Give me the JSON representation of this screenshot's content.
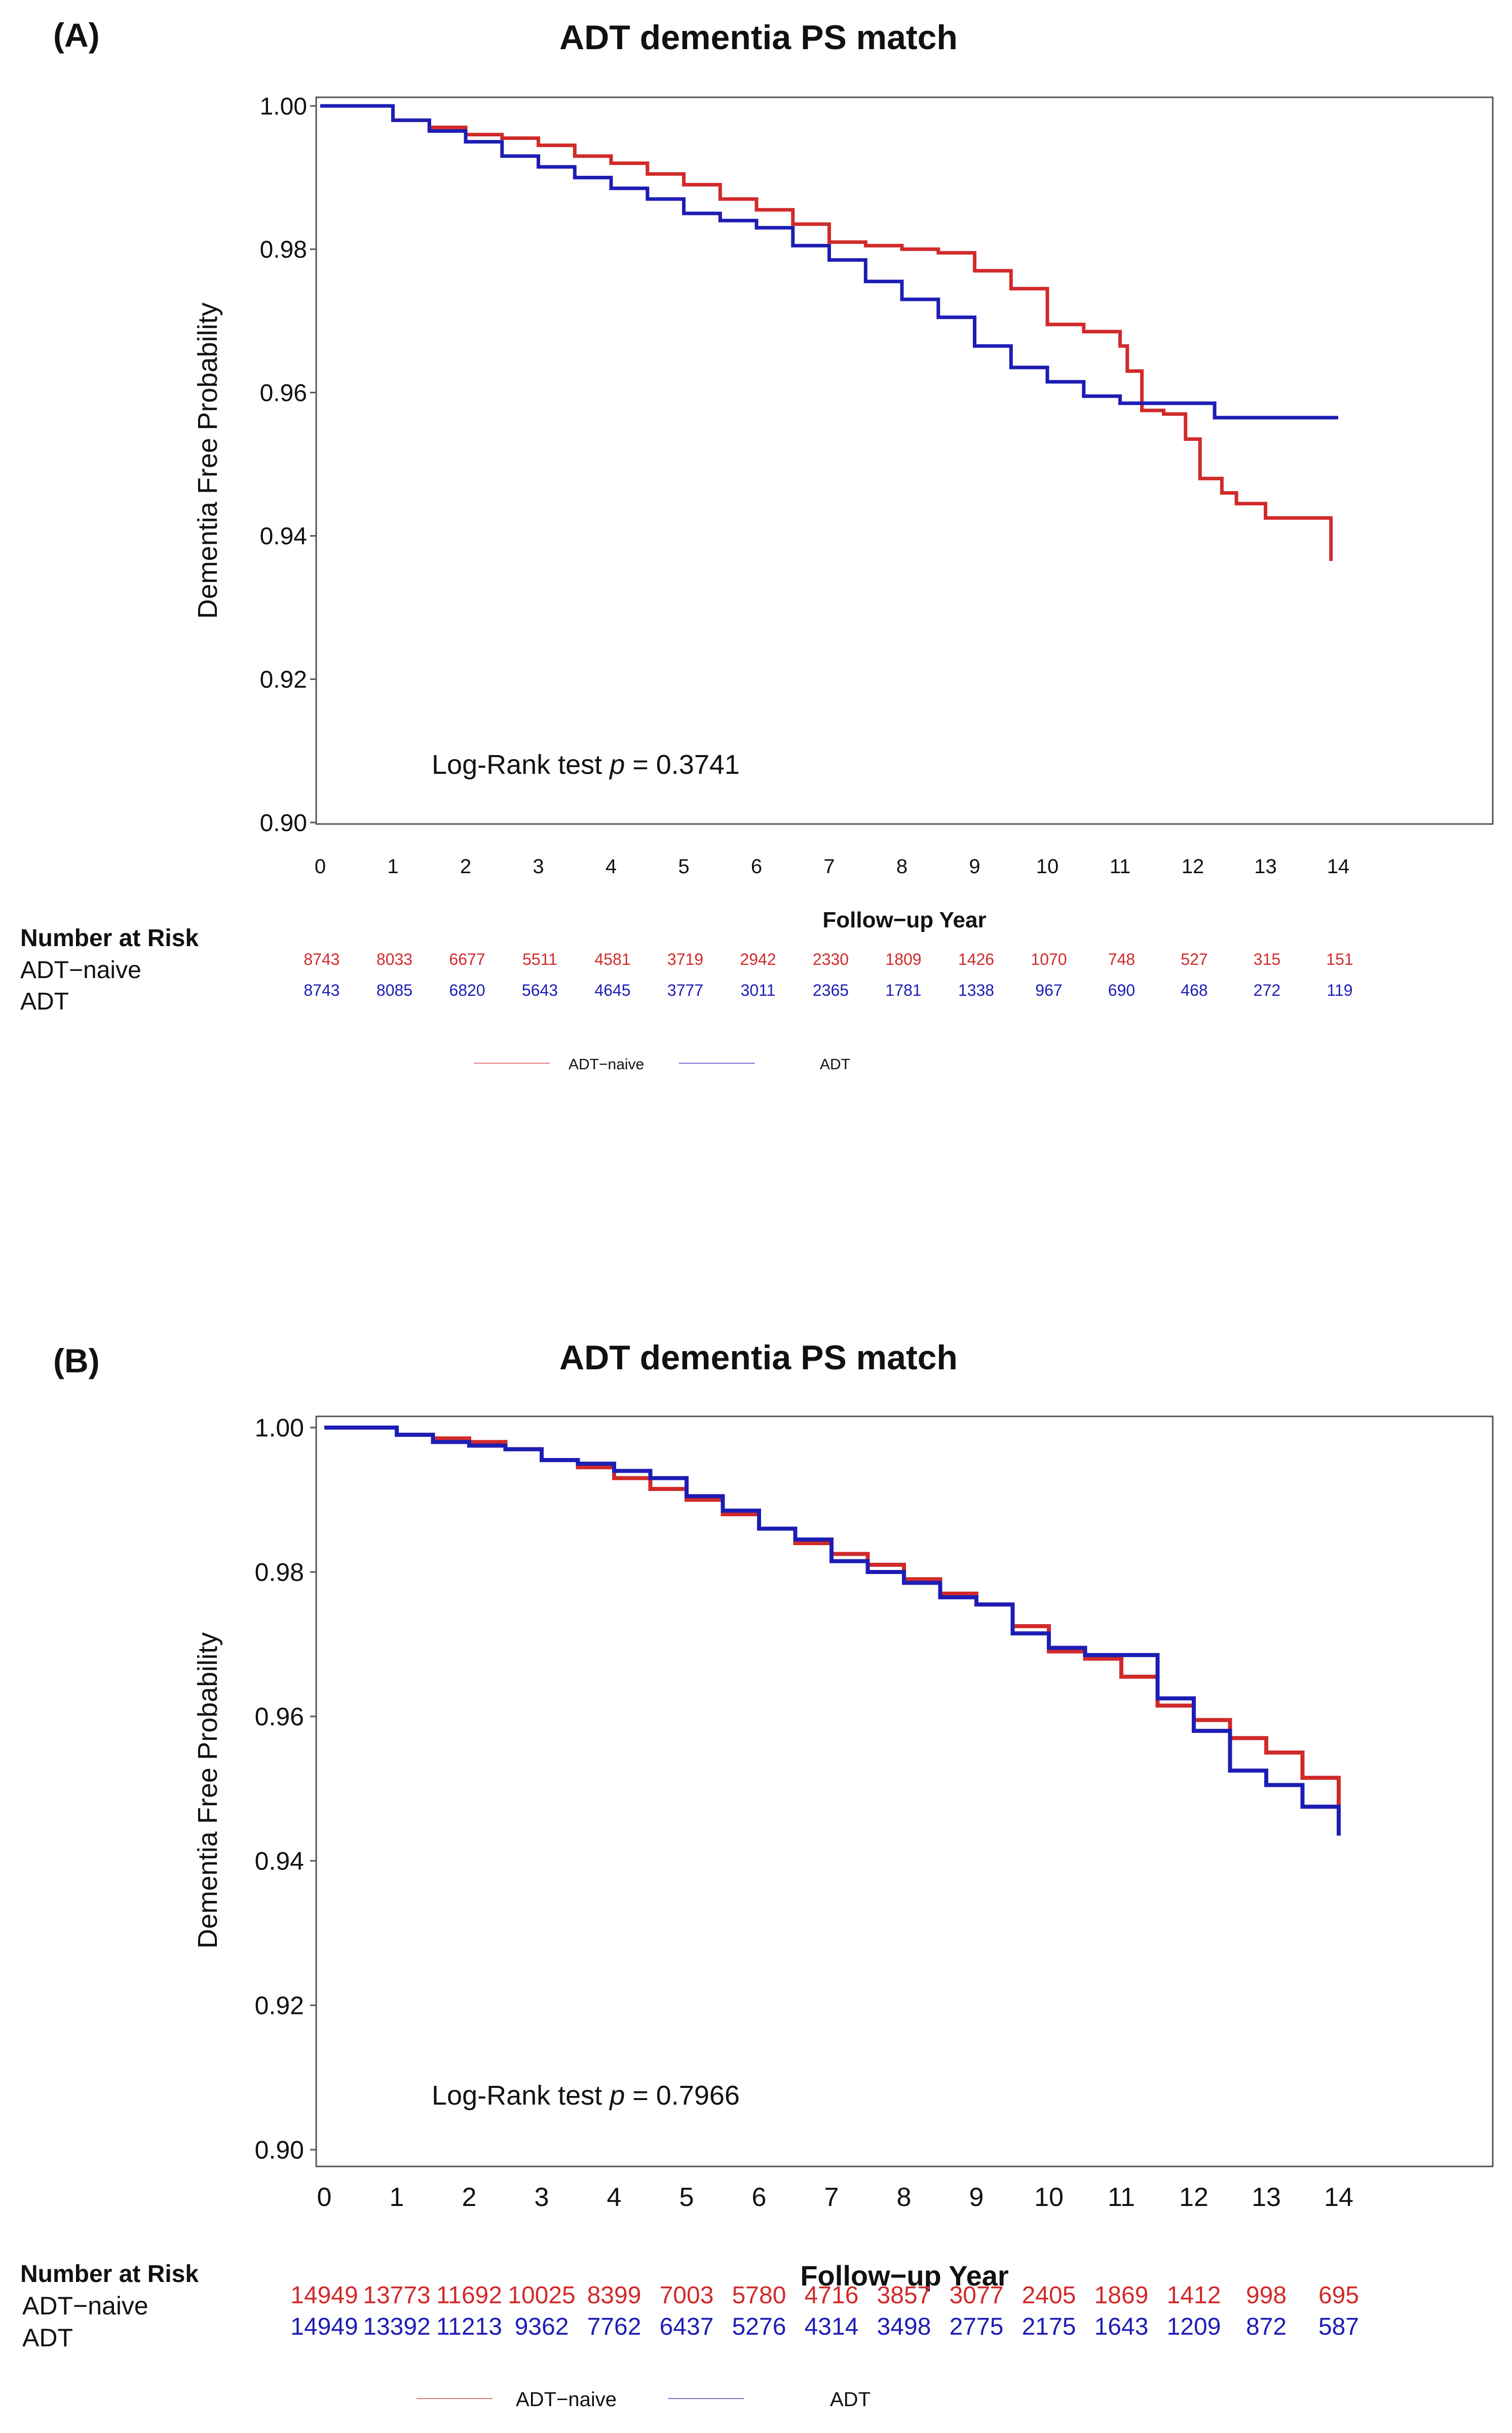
{
  "colors": {
    "naive": "#d12a2a",
    "adt": "#1d1db5",
    "axis": "#333333",
    "text": "#111111"
  },
  "chart_data": [
    {
      "type": "line",
      "panel_label": "(A)",
      "title": "ADT dementia PS match",
      "xlabel": "Follow−up Year",
      "ylabel": "Dementia Free Probability",
      "xlim": [
        0,
        16
      ],
      "ylim": [
        0.9,
        1.0
      ],
      "xticks": [
        0,
        1,
        2,
        3,
        4,
        5,
        6,
        7,
        8,
        9,
        10,
        11,
        12,
        13,
        14
      ],
      "yticks": [
        0.9,
        0.92,
        0.94,
        0.96,
        0.98,
        1.0
      ],
      "ytick_labels": [
        "0.90",
        "0.92",
        "0.94",
        "0.96",
        "0.98",
        "1.00"
      ],
      "grid": false,
      "annotation_prefix": "Log-Rank test ",
      "annotation_italic": "p",
      "annotation_suffix": " = 0.3741",
      "risk_title": "Number at Risk",
      "risk_times": [
        0,
        1,
        2,
        3,
        4,
        5,
        6,
        7,
        8,
        9,
        10,
        11,
        12,
        13,
        14
      ],
      "legend": [
        "ADT−naive",
        "ADT"
      ],
      "legend_position": "bottom-center",
      "series": [
        {
          "name": "ADT−naive",
          "color": "#d12a2a",
          "risk": [
            "8743",
            "8033",
            "6677",
            "5511",
            "4581",
            "3719",
            "2942",
            "2330",
            "1809",
            "1426",
            "1070",
            "748",
            "527",
            "315",
            "151"
          ],
          "x": [
            0,
            0.5,
            1,
            1.5,
            2,
            2.5,
            3,
            3.5,
            4,
            4.5,
            5,
            5.5,
            6,
            6.5,
            7,
            7.5,
            8,
            8.5,
            9,
            9.5,
            10,
            10.5,
            11,
            11.1,
            11.3,
            11.6,
            11.9,
            12.1,
            12.4,
            12.6,
            13,
            13.5,
            13.9,
            13.9
          ],
          "y": [
            1.0,
            1.0,
            0.998,
            0.997,
            0.996,
            0.9955,
            0.9945,
            0.993,
            0.992,
            0.9905,
            0.989,
            0.987,
            0.9855,
            0.9835,
            0.981,
            0.9805,
            0.98,
            0.9795,
            0.977,
            0.9745,
            0.9695,
            0.9685,
            0.9665,
            0.963,
            0.9575,
            0.957,
            0.9535,
            0.948,
            0.946,
            0.9445,
            0.9425,
            0.9425,
            0.9425,
            0.9365
          ]
        },
        {
          "name": "ADT",
          "color": "#1d1db5",
          "risk": [
            "8743",
            "8085",
            "6820",
            "5643",
            "4645",
            "3777",
            "3011",
            "2365",
            "1781",
            "1338",
            "967",
            "690",
            "468",
            "272",
            "119"
          ],
          "x": [
            0,
            0.5,
            1,
            1.5,
            2,
            2.5,
            3,
            3.5,
            4,
            4.5,
            5,
            5.5,
            6,
            6.5,
            7,
            7.5,
            8,
            8.5,
            9,
            9.5,
            10,
            10.5,
            11,
            11.5,
            12,
            12.3,
            12.3,
            13,
            14
          ],
          "y": [
            1.0,
            1.0,
            0.998,
            0.9965,
            0.995,
            0.993,
            0.9915,
            0.99,
            0.9885,
            0.987,
            0.985,
            0.984,
            0.983,
            0.9805,
            0.9785,
            0.9755,
            0.973,
            0.9705,
            0.9665,
            0.9635,
            0.9615,
            0.9595,
            0.9585,
            0.9585,
            0.9585,
            0.9585,
            0.9565,
            0.9565,
            0.9565
          ]
        }
      ]
    },
    {
      "type": "line",
      "panel_label": "(B)",
      "title": "ADT dementia PS match",
      "xlabel": "Follow−up Year",
      "ylabel": "Dementia Free Probability",
      "xlim": [
        0,
        16
      ],
      "ylim": [
        0.9,
        1.0
      ],
      "xticks": [
        0,
        1,
        2,
        3,
        4,
        5,
        6,
        7,
        8,
        9,
        10,
        11,
        12,
        13,
        14
      ],
      "yticks": [
        0.9,
        0.92,
        0.94,
        0.96,
        0.98,
        1.0
      ],
      "ytick_labels": [
        "0.90",
        "0.92",
        "0.94",
        "0.96",
        "0.98",
        "1.00"
      ],
      "grid": false,
      "annotation_prefix": "Log-Rank test ",
      "annotation_italic": "p",
      "annotation_suffix": " = 0.7966",
      "risk_title": "Number at Risk",
      "risk_times": [
        0,
        1,
        2,
        3,
        4,
        5,
        6,
        7,
        8,
        9,
        10,
        11,
        12,
        13,
        14
      ],
      "legend": [
        "ADT−naive",
        "ADT"
      ],
      "legend_position": "bottom-center",
      "series": [
        {
          "name": "ADT−naive",
          "color": "#d12a2a",
          "risk": [
            "14949",
            "13773",
            "11692",
            "10025",
            "8399",
            "7003",
            "5780",
            "4716",
            "3857",
            "3077",
            "2405",
            "1869",
            "1412",
            "998",
            "695"
          ],
          "x": [
            0,
            0.5,
            1,
            1.5,
            2,
            2.5,
            3,
            3.5,
            4,
            4.5,
            5,
            5.5,
            6,
            6.5,
            7,
            7.5,
            8,
            8.5,
            9,
            9.5,
            10,
            10.5,
            11,
            11.5,
            12,
            12.5,
            13,
            13.5,
            14
          ],
          "y": [
            1.0,
            1.0,
            0.999,
            0.9985,
            0.998,
            0.997,
            0.9955,
            0.9945,
            0.993,
            0.9915,
            0.99,
            0.988,
            0.986,
            0.984,
            0.9825,
            0.981,
            0.979,
            0.977,
            0.9755,
            0.9725,
            0.969,
            0.968,
            0.9655,
            0.9615,
            0.9595,
            0.957,
            0.955,
            0.9515,
            0.9465
          ]
        },
        {
          "name": "ADT",
          "color": "#1d1db5",
          "risk": [
            "14949",
            "13392",
            "11213",
            "9362",
            "7762",
            "6437",
            "5276",
            "4314",
            "3498",
            "2775",
            "2175",
            "1643",
            "1209",
            "872",
            "587"
          ],
          "x": [
            0,
            0.5,
            1,
            1.5,
            2,
            2.5,
            3,
            3.5,
            4,
            4.5,
            5,
            5.5,
            6,
            6.5,
            7,
            7.5,
            8,
            8.5,
            9,
            9.5,
            10,
            10.5,
            11,
            11.5,
            12,
            12.5,
            13,
            13.5,
            14
          ],
          "y": [
            1.0,
            1.0,
            0.999,
            0.998,
            0.9975,
            0.997,
            0.9955,
            0.995,
            0.994,
            0.993,
            0.9905,
            0.9885,
            0.986,
            0.9845,
            0.9815,
            0.98,
            0.9785,
            0.9765,
            0.9755,
            0.9715,
            0.9695,
            0.9685,
            0.9685,
            0.9625,
            0.958,
            0.9525,
            0.9505,
            0.9475,
            0.9435
          ]
        }
      ]
    }
  ]
}
